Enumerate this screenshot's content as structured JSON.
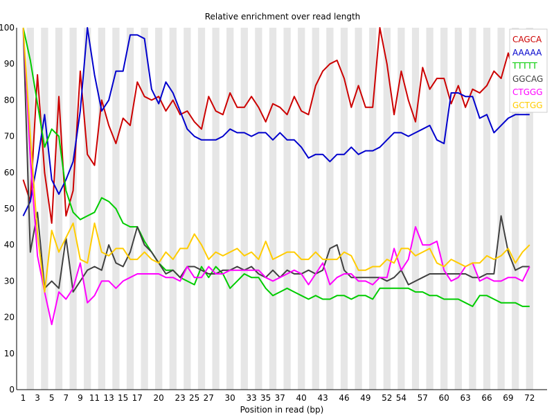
{
  "chart_data": {
    "type": "line",
    "title": "Relative enrichment over read length",
    "xlabel": "Position in read (bp)",
    "ylabel": "",
    "ylim": [
      0,
      100
    ],
    "yticks": [
      0,
      10,
      20,
      30,
      40,
      50,
      60,
      70,
      80,
      90,
      100
    ],
    "x": [
      1,
      2,
      3,
      4,
      5,
      6,
      7,
      8,
      9,
      10,
      11,
      12,
      13,
      14,
      15,
      16,
      17,
      18,
      19,
      20,
      21,
      22,
      23,
      24,
      25,
      26,
      27,
      28,
      29,
      30,
      31,
      32,
      33,
      34,
      35,
      36,
      37,
      38,
      39,
      40,
      41,
      42,
      43,
      44,
      45,
      46,
      47,
      48,
      49,
      50,
      51,
      52,
      53,
      54,
      55,
      56,
      57,
      58,
      59,
      60,
      61,
      62,
      63,
      64,
      65,
      66,
      67,
      68,
      69,
      70,
      71,
      72
    ],
    "xtick_labels": [
      1,
      3,
      5,
      7,
      9,
      11,
      13,
      15,
      17,
      20,
      23,
      25,
      27,
      30,
      33,
      35,
      37,
      40,
      43,
      46,
      49,
      52,
      54,
      57,
      60,
      63,
      66,
      69,
      72
    ],
    "grid": "alternating vertical bands",
    "legend_position": "top-right",
    "series": [
      {
        "name": "CAGCA",
        "color": "#cc0000",
        "values": [
          58,
          52,
          87,
          60,
          46,
          81,
          48,
          55,
          88,
          65,
          62,
          80,
          73,
          68,
          75,
          73,
          85,
          81,
          80,
          81,
          77,
          80,
          76,
          77,
          74,
          72,
          81,
          77,
          76,
          82,
          78,
          78,
          81,
          78,
          74,
          79,
          78,
          76,
          81,
          77,
          76,
          84,
          88,
          90,
          91,
          86,
          78,
          84,
          78,
          78,
          100,
          90,
          76,
          88,
          80,
          74,
          89,
          83,
          86,
          86,
          79,
          84,
          78,
          83,
          82,
          84,
          88,
          86,
          93,
          86,
          78,
          78
        ]
      },
      {
        "name": "AAAAA",
        "color": "#0000cc",
        "values": [
          48,
          52,
          63,
          76,
          58,
          54,
          58,
          63,
          77,
          100,
          87,
          77,
          80,
          88,
          88,
          98,
          98,
          97,
          83,
          79,
          85,
          82,
          77,
          72,
          70,
          69,
          69,
          69,
          70,
          72,
          71,
          71,
          70,
          71,
          71,
          69,
          71,
          69,
          69,
          67,
          64,
          65,
          65,
          63,
          65,
          65,
          67,
          65,
          66,
          66,
          67,
          69,
          71,
          71,
          70,
          71,
          72,
          73,
          69,
          68,
          82,
          82,
          81,
          81,
          75,
          76,
          71,
          73,
          75,
          76,
          76,
          76
        ]
      },
      {
        "name": "TTTTT",
        "color": "#00cc00",
        "values": [
          100,
          91,
          79,
          67,
          72,
          70,
          55,
          49,
          47,
          48,
          49,
          53,
          52,
          50,
          46,
          45,
          45,
          41,
          38,
          35,
          33,
          33,
          31,
          30,
          29,
          34,
          31,
          34,
          32,
          28,
          30,
          32,
          31,
          31,
          28,
          26,
          27,
          28,
          27,
          26,
          25,
          26,
          25,
          25,
          26,
          26,
          25,
          26,
          26,
          25,
          28,
          28,
          28,
          28,
          28,
          27,
          27,
          26,
          26,
          25,
          25,
          25,
          24,
          23,
          26,
          26,
          25,
          24,
          24,
          24,
          23,
          23
        ]
      },
      {
        "name": "GGCAG",
        "color": "#404040",
        "values": [
          100,
          38,
          49,
          28,
          30,
          28,
          42,
          27,
          30,
          33,
          34,
          33,
          40,
          35,
          34,
          38,
          45,
          40,
          38,
          35,
          32,
          33,
          31,
          34,
          34,
          33,
          32,
          32,
          33,
          33,
          34,
          33,
          34,
          32,
          31,
          33,
          31,
          33,
          32,
          32,
          33,
          32,
          33,
          39,
          40,
          33,
          31,
          31,
          31,
          31,
          31,
          30,
          31,
          33,
          29,
          30,
          31,
          32,
          32,
          32,
          32,
          32,
          32,
          31,
          31,
          32,
          32,
          48,
          38,
          33,
          34,
          34
        ]
      },
      {
        "name": "CTGGG",
        "color": "#ff00ff",
        "values": [
          100,
          64,
          37,
          27,
          18,
          27,
          25,
          28,
          35,
          24,
          26,
          30,
          30,
          28,
          30,
          31,
          32,
          32,
          32,
          32,
          31,
          31,
          30,
          34,
          31,
          31,
          34,
          32,
          32,
          33,
          33,
          33,
          33,
          33,
          31,
          30,
          31,
          32,
          33,
          32,
          29,
          32,
          35,
          29,
          31,
          32,
          32,
          30,
          30,
          29,
          31,
          31,
          39,
          33,
          36,
          45,
          40,
          40,
          41,
          33,
          30,
          31,
          34,
          35,
          30,
          31,
          30,
          30,
          31,
          31,
          30,
          34
        ]
      },
      {
        "name": "GCTGG",
        "color": "#ffcc00",
        "values": [
          100,
          70,
          43,
          27,
          44,
          38,
          42,
          46,
          36,
          35,
          46,
          38,
          37,
          39,
          39,
          36,
          36,
          38,
          36,
          35,
          38,
          36,
          39,
          39,
          43,
          40,
          36,
          38,
          37,
          38,
          39,
          37,
          38,
          36,
          41,
          36,
          37,
          38,
          38,
          36,
          36,
          38,
          36,
          36,
          36,
          38,
          37,
          33,
          33,
          34,
          34,
          36,
          35,
          39,
          39,
          37,
          38,
          39,
          35,
          34,
          36,
          35,
          34,
          35,
          35,
          37,
          36,
          37,
          39,
          35,
          38,
          40
        ]
      }
    ]
  }
}
